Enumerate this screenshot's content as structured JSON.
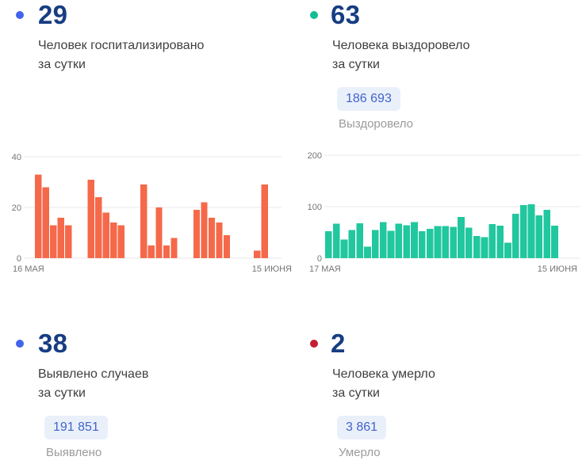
{
  "cards": {
    "hospitalized": {
      "value": "29",
      "dot_color": "#4263EB",
      "title_line1": "Человек госпитализировано",
      "title_line2": "за сутки"
    },
    "recovered": {
      "value": "63",
      "dot_color": "#13BD94",
      "title_line1": "Человека выздоровело",
      "title_line2": "за сутки",
      "total_value": "186 693",
      "total_label": "Выздоровело"
    },
    "detected": {
      "value": "38",
      "dot_color": "#4263EB",
      "title_line1": "Выявлено случаев",
      "title_line2": "за сутки",
      "total_value": "191 851",
      "total_label": "Выявлено"
    },
    "died": {
      "value": "2",
      "dot_color": "#C41E33",
      "title_line1": "Человека умерло",
      "title_line2": "за сутки",
      "total_value": "3 861",
      "total_label": "Умерло"
    }
  },
  "chart_data": [
    {
      "id": "hospitalized",
      "type": "bar",
      "title": "Человек госпитализировано за сутки",
      "color": "#F5694A",
      "ylim": [
        0,
        40
      ],
      "yticks": [
        0,
        20,
        40
      ],
      "grid": true,
      "legend": "none",
      "xlabel_start": "16 МАЯ",
      "xlabel_end": "15 ИЮНЯ",
      "values": [
        33,
        28,
        13,
        16,
        13,
        0,
        0,
        31,
        24,
        18,
        14,
        13,
        0,
        0,
        29,
        5,
        20,
        5,
        8,
        0,
        0,
        19,
        22,
        16,
        14,
        9,
        0,
        0,
        0,
        3,
        29
      ]
    },
    {
      "id": "recovered",
      "type": "bar",
      "title": "Человека выздоровело за сутки",
      "color": "#21C79E",
      "ylim": [
        0,
        200
      ],
      "yticks": [
        0,
        100,
        200
      ],
      "grid": true,
      "legend": "none",
      "xlabel_start": "17 МАЯ",
      "xlabel_end": "15 ИЮНЯ",
      "values": [
        52,
        67,
        36,
        55,
        68,
        22,
        55,
        70,
        53,
        67,
        64,
        70,
        52,
        57,
        62,
        62,
        61,
        80,
        59,
        43,
        41,
        66,
        63,
        30,
        86,
        103,
        105,
        83,
        94,
        63
      ]
    }
  ]
}
